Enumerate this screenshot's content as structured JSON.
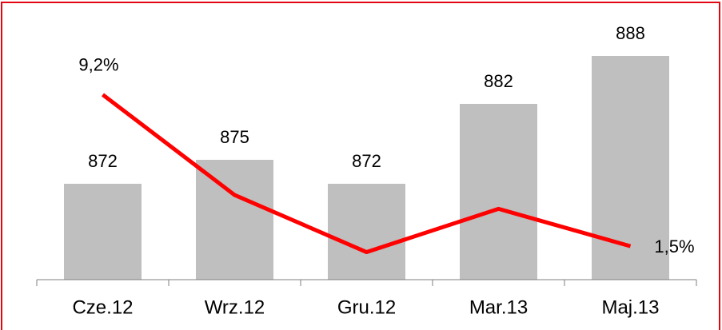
{
  "chart_data": {
    "type": "bar_line",
    "categories": [
      "Cze.12",
      "Wrz.12",
      "Gru.12",
      "Mar.13",
      "Maj.13"
    ],
    "series": [
      {
        "type": "bar",
        "color": "#bfbfbf",
        "values": [
          872,
          875,
          872,
          882,
          888
        ]
      },
      {
        "type": "line",
        "axis": "y2",
        "color": "#ff0000",
        "values": [
          9.2,
          4.1,
          1.2,
          3.4,
          1.5
        ],
        "value_labels": [
          "9,2%",
          null,
          null,
          null,
          "1,5%"
        ]
      }
    ],
    "ylim": [
      860,
      893
    ],
    "y2lim": [
      -0.2,
      13.2
    ]
  }
}
